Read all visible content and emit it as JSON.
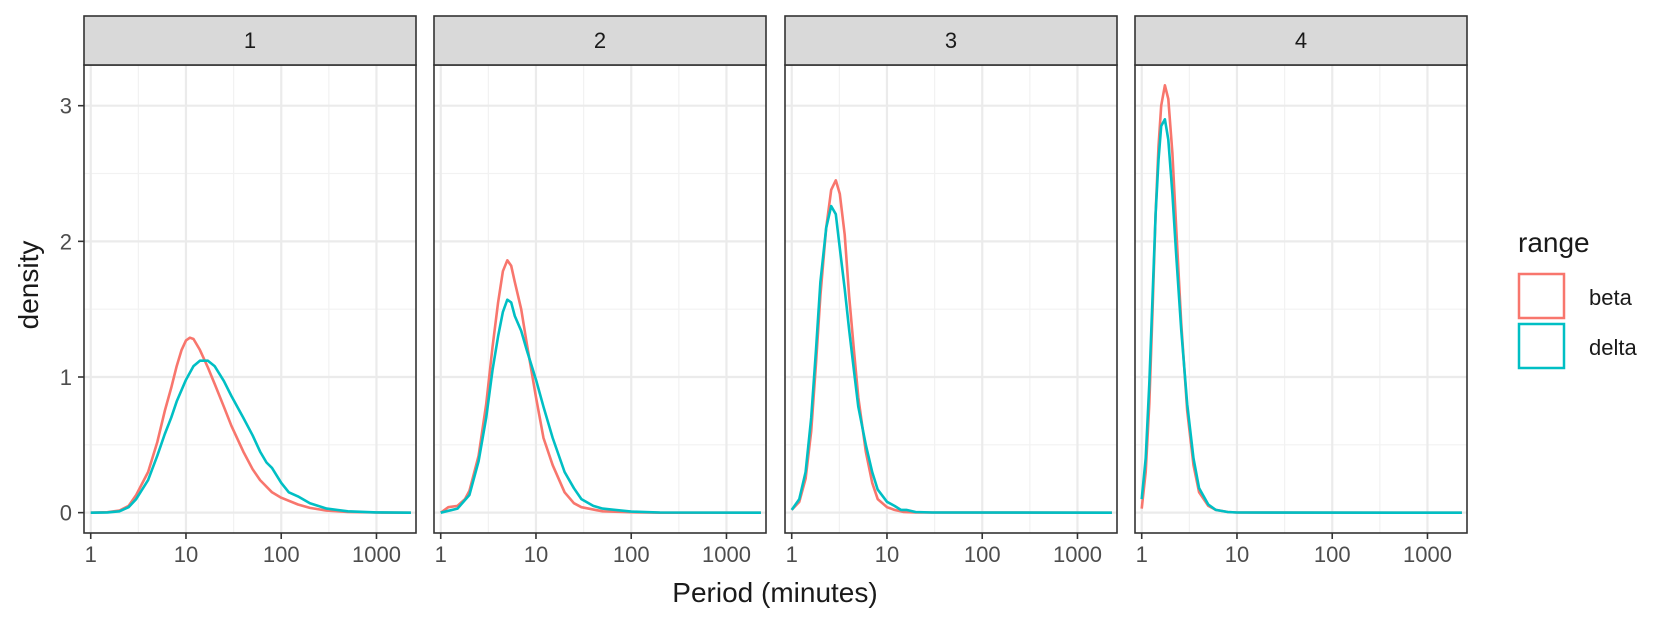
{
  "chart_data": {
    "type": "line",
    "chart_kind": "faceted density plot",
    "xlabel": "Period (minutes)",
    "ylabel": "density",
    "x_scale": "log10",
    "xlim": [
      0.85,
      2600
    ],
    "ylim": [
      -0.15,
      3.3
    ],
    "x_ticks": [
      1,
      10,
      100,
      1000
    ],
    "x_tick_labels": [
      "1",
      "10",
      "100",
      "1000"
    ],
    "y_ticks": [
      0,
      1,
      2,
      3
    ],
    "y_tick_labels": [
      "0",
      "1",
      "2",
      "3"
    ],
    "grid": true,
    "legend": {
      "title": "range",
      "position": "right",
      "entries": [
        {
          "name": "beta",
          "color": "#F8766D"
        },
        {
          "name": "delta",
          "color": "#00BFC4"
        }
      ]
    },
    "facets": [
      {
        "label": "1",
        "series": [
          {
            "name": "beta",
            "points": [
              [
                1,
                0
              ],
              [
                1.5,
                0.003
              ],
              [
                2,
                0.015
              ],
              [
                2.5,
                0.05
              ],
              [
                3,
                0.13
              ],
              [
                4,
                0.3
              ],
              [
                5,
                0.52
              ],
              [
                6,
                0.75
              ],
              [
                7,
                0.92
              ],
              [
                8,
                1.08
              ],
              [
                9,
                1.2
              ],
              [
                10,
                1.27
              ],
              [
                11,
                1.29
              ],
              [
                12,
                1.28
              ],
              [
                14,
                1.2
              ],
              [
                17,
                1.07
              ],
              [
                20,
                0.95
              ],
              [
                25,
                0.78
              ],
              [
                30,
                0.64
              ],
              [
                40,
                0.45
              ],
              [
                50,
                0.32
              ],
              [
                60,
                0.24
              ],
              [
                80,
                0.15
              ],
              [
                100,
                0.11
              ],
              [
                150,
                0.06
              ],
              [
                200,
                0.035
              ],
              [
                300,
                0.015
              ],
              [
                500,
                0.005
              ],
              [
                1000,
                0.001
              ],
              [
                2300,
                0
              ]
            ]
          },
          {
            "name": "delta",
            "points": [
              [
                1,
                0
              ],
              [
                1.5,
                0.002
              ],
              [
                2,
                0.01
              ],
              [
                2.5,
                0.04
              ],
              [
                3,
                0.1
              ],
              [
                4,
                0.24
              ],
              [
                5,
                0.42
              ],
              [
                6,
                0.58
              ],
              [
                7,
                0.7
              ],
              [
                8,
                0.82
              ],
              [
                10,
                0.98
              ],
              [
                12,
                1.08
              ],
              [
                14,
                1.12
              ],
              [
                17,
                1.12
              ],
              [
                20,
                1.08
              ],
              [
                25,
                0.97
              ],
              [
                30,
                0.86
              ],
              [
                40,
                0.7
              ],
              [
                50,
                0.57
              ],
              [
                60,
                0.45
              ],
              [
                70,
                0.37
              ],
              [
                80,
                0.33
              ],
              [
                100,
                0.22
              ],
              [
                120,
                0.15
              ],
              [
                150,
                0.12
              ],
              [
                200,
                0.07
              ],
              [
                300,
                0.03
              ],
              [
                500,
                0.01
              ],
              [
                1000,
                0.002
              ],
              [
                2300,
                0
              ]
            ]
          }
        ]
      },
      {
        "label": "2",
        "series": [
          {
            "name": "beta",
            "points": [
              [
                1,
                0
              ],
              [
                1.2,
                0.04
              ],
              [
                1.5,
                0.05
              ],
              [
                1.8,
                0.1
              ],
              [
                2,
                0.16
              ],
              [
                2.5,
                0.42
              ],
              [
                3,
                0.8
              ],
              [
                3.5,
                1.22
              ],
              [
                4,
                1.55
              ],
              [
                4.5,
                1.78
              ],
              [
                5,
                1.86
              ],
              [
                5.5,
                1.82
              ],
              [
                6,
                1.7
              ],
              [
                7,
                1.5
              ],
              [
                8,
                1.25
              ],
              [
                10,
                0.85
              ],
              [
                12,
                0.55
              ],
              [
                15,
                0.35
              ],
              [
                20,
                0.15
              ],
              [
                25,
                0.07
              ],
              [
                30,
                0.04
              ],
              [
                50,
                0.01
              ],
              [
                100,
                0.003
              ],
              [
                200,
                0
              ],
              [
                2300,
                0
              ]
            ]
          },
          {
            "name": "delta",
            "points": [
              [
                1,
                0
              ],
              [
                1.5,
                0.03
              ],
              [
                2,
                0.13
              ],
              [
                2.5,
                0.38
              ],
              [
                3,
                0.7
              ],
              [
                3.5,
                1.05
              ],
              [
                4,
                1.3
              ],
              [
                4.5,
                1.48
              ],
              [
                5,
                1.57
              ],
              [
                5.5,
                1.55
              ],
              [
                6,
                1.45
              ],
              [
                7,
                1.34
              ],
              [
                8,
                1.2
              ],
              [
                10,
                0.98
              ],
              [
                12,
                0.78
              ],
              [
                15,
                0.55
              ],
              [
                20,
                0.3
              ],
              [
                25,
                0.18
              ],
              [
                30,
                0.1
              ],
              [
                40,
                0.05
              ],
              [
                50,
                0.03
              ],
              [
                100,
                0.008
              ],
              [
                200,
                0.001
              ],
              [
                2300,
                0
              ]
            ]
          }
        ]
      },
      {
        "label": "3",
        "series": [
          {
            "name": "beta",
            "points": [
              [
                1,
                0.02
              ],
              [
                1.2,
                0.08
              ],
              [
                1.4,
                0.25
              ],
              [
                1.6,
                0.6
              ],
              [
                1.8,
                1.1
              ],
              [
                2,
                1.6
              ],
              [
                2.3,
                2.1
              ],
              [
                2.6,
                2.38
              ],
              [
                2.9,
                2.45
              ],
              [
                3.2,
                2.35
              ],
              [
                3.6,
                2.05
              ],
              [
                4,
                1.6
              ],
              [
                4.5,
                1.2
              ],
              [
                5,
                0.85
              ],
              [
                6,
                0.45
              ],
              [
                7,
                0.22
              ],
              [
                8,
                0.1
              ],
              [
                10,
                0.04
              ],
              [
                12,
                0.02
              ],
              [
                15,
                0.005
              ],
              [
                20,
                0.001
              ],
              [
                2300,
                0
              ]
            ]
          },
          {
            "name": "delta",
            "points": [
              [
                1,
                0.02
              ],
              [
                1.2,
                0.1
              ],
              [
                1.4,
                0.3
              ],
              [
                1.6,
                0.7
              ],
              [
                1.8,
                1.2
              ],
              [
                2,
                1.7
              ],
              [
                2.3,
                2.1
              ],
              [
                2.6,
                2.26
              ],
              [
                2.9,
                2.2
              ],
              [
                3.2,
                1.95
              ],
              [
                3.6,
                1.65
              ],
              [
                4,
                1.35
              ],
              [
                4.5,
                1.05
              ],
              [
                5,
                0.78
              ],
              [
                6,
                0.5
              ],
              [
                7,
                0.3
              ],
              [
                8,
                0.17
              ],
              [
                10,
                0.08
              ],
              [
                12,
                0.05
              ],
              [
                14,
                0.02
              ],
              [
                16,
                0.02
              ],
              [
                20,
                0.005
              ],
              [
                30,
                0.001
              ],
              [
                2300,
                0
              ]
            ]
          }
        ]
      },
      {
        "label": "4",
        "series": [
          {
            "name": "beta",
            "points": [
              [
                1,
                0.03
              ],
              [
                1.1,
                0.3
              ],
              [
                1.2,
                0.8
              ],
              [
                1.3,
                1.5
              ],
              [
                1.4,
                2.2
              ],
              [
                1.5,
                2.7
              ],
              [
                1.6,
                3.0
              ],
              [
                1.75,
                3.15
              ],
              [
                1.9,
                3.05
              ],
              [
                2.1,
                2.65
              ],
              [
                2.3,
                2.1
              ],
              [
                2.6,
                1.4
              ],
              [
                3,
                0.75
              ],
              [
                3.5,
                0.35
              ],
              [
                4,
                0.15
              ],
              [
                5,
                0.05
              ],
              [
                6,
                0.02
              ],
              [
                8,
                0.005
              ],
              [
                10,
                0.001
              ],
              [
                2300,
                0
              ]
            ]
          },
          {
            "name": "delta",
            "points": [
              [
                1,
                0.1
              ],
              [
                1.1,
                0.4
              ],
              [
                1.2,
                0.95
              ],
              [
                1.3,
                1.6
              ],
              [
                1.4,
                2.2
              ],
              [
                1.5,
                2.6
              ],
              [
                1.6,
                2.85
              ],
              [
                1.75,
                2.9
              ],
              [
                1.9,
                2.75
              ],
              [
                2.1,
                2.35
              ],
              [
                2.3,
                1.9
              ],
              [
                2.6,
                1.35
              ],
              [
                3,
                0.8
              ],
              [
                3.5,
                0.4
              ],
              [
                4,
                0.18
              ],
              [
                5,
                0.06
              ],
              [
                6,
                0.02
              ],
              [
                8,
                0.005
              ],
              [
                10,
                0.001
              ],
              [
                2300,
                0
              ]
            ]
          }
        ]
      }
    ]
  }
}
